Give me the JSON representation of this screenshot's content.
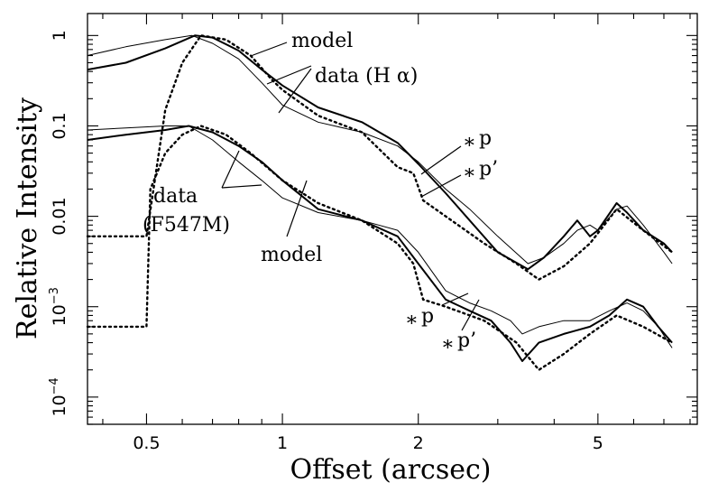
{
  "chart_data": {
    "type": "line",
    "xlabel": "Offset (arcsec)",
    "ylabel": "Relative Intensity",
    "xscale": "log",
    "yscale": "log",
    "xlim": [
      0.37,
      8.3
    ],
    "ylim": [
      5e-05,
      1.75
    ],
    "x_ticks": [
      {
        "value": 0.5,
        "label": "0.5"
      },
      {
        "value": 1,
        "label": "1"
      },
      {
        "value": 2,
        "label": "2"
      },
      {
        "value": 5,
        "label": "5"
      }
    ],
    "y_ticks": [
      {
        "value": 1,
        "label": "1",
        "base": "1",
        "exp": ""
      },
      {
        "value": 0.1,
        "label": "0.1",
        "base": "0.1",
        "exp": ""
      },
      {
        "value": 0.01,
        "label": "0.01",
        "base": "0.01",
        "exp": ""
      },
      {
        "value": 0.001,
        "label": "10^-3",
        "base": "10",
        "exp": "−3"
      },
      {
        "value": 0.0001,
        "label": "10^-4",
        "base": "10",
        "exp": "−4"
      }
    ],
    "series": [
      {
        "style": "thick",
        "x": [
          0.37,
          0.45,
          0.55,
          0.64,
          0.7,
          0.8,
          0.9,
          1.0,
          1.2,
          1.5,
          1.8,
          2.0,
          2.3,
          2.6,
          3.0,
          3.5,
          3.8,
          4.2,
          4.5,
          4.8,
          5.0,
          5.5,
          5.8,
          6.3,
          7.0,
          7.3
        ],
        "y": [
          0.42,
          0.5,
          0.72,
          1.0,
          0.95,
          0.68,
          0.42,
          0.28,
          0.16,
          0.11,
          0.065,
          0.038,
          0.018,
          0.009,
          0.004,
          0.0026,
          0.0035,
          0.006,
          0.009,
          0.006,
          0.007,
          0.014,
          0.011,
          0.007,
          0.005,
          0.004
        ]
      },
      {
        "style": "thin",
        "x": [
          0.37,
          0.45,
          0.55,
          0.63,
          0.7,
          0.8,
          0.9,
          1.0,
          1.2,
          1.5,
          1.8,
          2.0,
          2.3,
          2.6,
          3.0,
          3.5,
          3.8,
          4.2,
          4.5,
          4.8,
          5.0,
          5.5,
          5.8,
          6.3,
          7.0,
          7.3
        ],
        "y": [
          0.6,
          0.75,
          0.9,
          1.0,
          0.82,
          0.55,
          0.3,
          0.17,
          0.11,
          0.085,
          0.06,
          0.04,
          0.02,
          0.012,
          0.006,
          0.003,
          0.0035,
          0.005,
          0.007,
          0.008,
          0.007,
          0.012,
          0.013,
          0.008,
          0.004,
          0.003
        ]
      },
      {
        "style": "dotted",
        "x": [
          0.37,
          0.5,
          0.55,
          0.6,
          0.66,
          0.75,
          0.85,
          0.95,
          1.0,
          1.2,
          1.5,
          1.8,
          1.95,
          2.05,
          2.3,
          2.8,
          3.3,
          3.7,
          4.2,
          4.8,
          5.5,
          6.3,
          7.3
        ],
        "y": [
          0.006,
          0.006,
          0.15,
          0.5,
          1.0,
          0.9,
          0.6,
          0.32,
          0.25,
          0.13,
          0.085,
          0.035,
          0.03,
          0.015,
          0.01,
          0.005,
          0.003,
          0.002,
          0.0028,
          0.005,
          0.012,
          0.007,
          0.004
        ]
      },
      {
        "style": "thick",
        "x": [
          0.37,
          0.45,
          0.55,
          0.62,
          0.7,
          0.8,
          0.9,
          1.0,
          1.2,
          1.5,
          1.8,
          2.0,
          2.3,
          2.6,
          2.9,
          3.2,
          3.4,
          3.7,
          4.2,
          4.8,
          5.3,
          5.8,
          6.3,
          6.8,
          7.3
        ],
        "y": [
          0.07,
          0.08,
          0.09,
          0.1,
          0.085,
          0.06,
          0.04,
          0.025,
          0.012,
          0.009,
          0.006,
          0.003,
          0.0012,
          0.0009,
          0.0007,
          0.0004,
          0.00025,
          0.0004,
          0.0005,
          0.0006,
          0.0008,
          0.0012,
          0.001,
          0.0006,
          0.0004
        ]
      },
      {
        "style": "thin",
        "x": [
          0.37,
          0.45,
          0.55,
          0.62,
          0.7,
          0.8,
          0.9,
          1.0,
          1.2,
          1.5,
          1.8,
          2.0,
          2.3,
          2.6,
          2.9,
          3.2,
          3.4,
          3.7,
          4.2,
          4.8,
          5.3,
          5.8,
          6.3,
          6.8,
          7.3
        ],
        "y": [
          0.09,
          0.095,
          0.1,
          0.1,
          0.07,
          0.04,
          0.025,
          0.016,
          0.011,
          0.009,
          0.007,
          0.004,
          0.0015,
          0.0011,
          0.0009,
          0.0007,
          0.0005,
          0.0006,
          0.0007,
          0.0007,
          0.0009,
          0.0011,
          0.0009,
          0.0006,
          0.00035
        ]
      },
      {
        "style": "dotted",
        "x": [
          0.37,
          0.5,
          0.51,
          0.55,
          0.6,
          0.66,
          0.75,
          0.85,
          1.0,
          1.2,
          1.5,
          1.8,
          1.95,
          2.05,
          2.3,
          2.8,
          3.3,
          3.7,
          4.2,
          4.8,
          5.5,
          6.3,
          7.3
        ],
        "y": [
          0.0006,
          0.0006,
          0.02,
          0.05,
          0.08,
          0.1,
          0.08,
          0.05,
          0.025,
          0.014,
          0.009,
          0.005,
          0.003,
          0.0012,
          0.001,
          0.0007,
          0.0004,
          0.0002,
          0.0003,
          0.0005,
          0.0008,
          0.0006,
          0.0004
        ]
      }
    ],
    "annotations": [
      {
        "text": "model"
      },
      {
        "text": "data (H α)"
      },
      {
        "text": "data"
      },
      {
        "text": "(F547M)"
      },
      {
        "text": "model"
      },
      {
        "text": "p",
        "marker": "∗"
      },
      {
        "text": "p’",
        "marker": "∗"
      },
      {
        "text": "p",
        "marker": "∗"
      },
      {
        "text": "p’",
        "marker": "∗"
      }
    ],
    "grid": false,
    "legend": "none"
  }
}
